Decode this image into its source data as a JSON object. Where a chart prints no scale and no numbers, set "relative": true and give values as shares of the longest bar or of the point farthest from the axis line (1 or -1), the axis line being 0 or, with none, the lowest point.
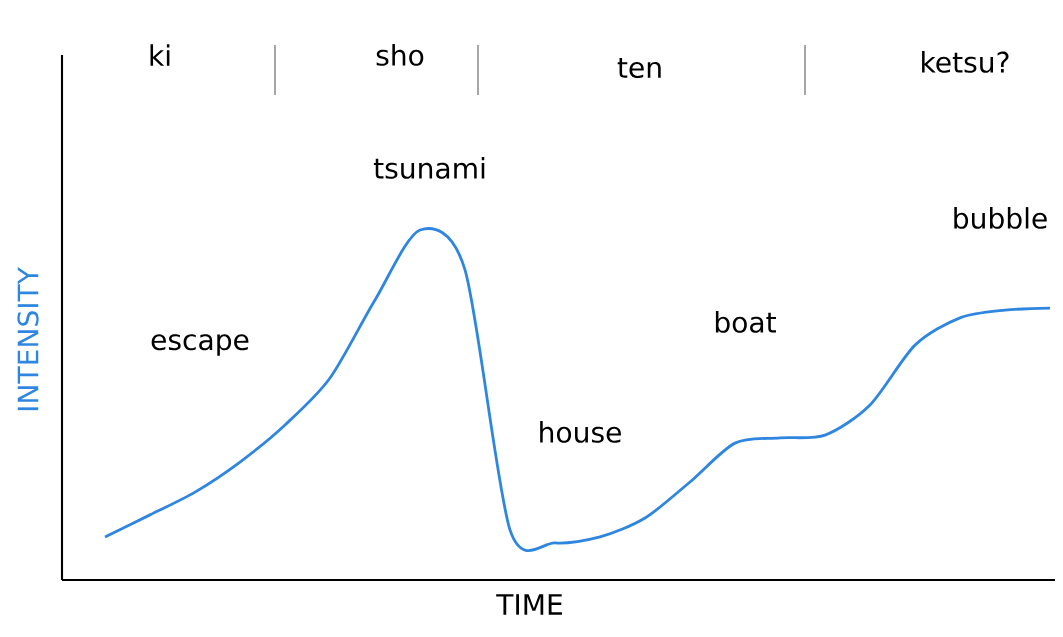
{
  "chart_data": {
    "type": "line",
    "relative": true,
    "xlabel": "TIME",
    "ylabel": "INTENSITY",
    "categories": [
      null,
      null,
      null,
      null,
      null,
      null,
      null,
      null,
      null,
      null,
      null,
      null,
      null,
      null,
      null,
      null,
      null,
      null,
      null,
      null,
      null,
      null
    ],
    "series": [
      {
        "color": "#2f86e0",
        "values": [
          0.123,
          0.186,
          0.251,
          0.337,
          0.443,
          0.577,
          0.8,
          1,
          0.886,
          0.143,
          0.106,
          0.123,
          0.177,
          0.28,
          0.391,
          0.406,
          0.414,
          0.5,
          0.671,
          0.749,
          0.771,
          0.777
        ]
      }
    ],
    "annotations": [
      "ki",
      "sho",
      "ten",
      "ketsu?",
      "tsunami",
      "escape",
      "house",
      "boat",
      "bubble"
    ]
  }
}
